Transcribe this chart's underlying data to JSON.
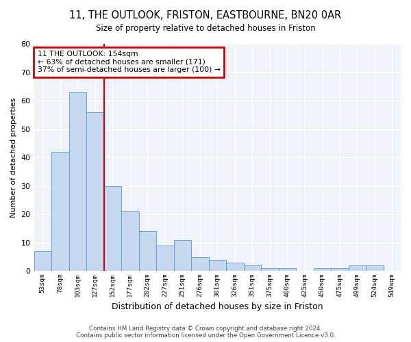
{
  "title1": "11, THE OUTLOOK, FRISTON, EASTBOURNE, BN20 0AR",
  "title2": "Size of property relative to detached houses in Friston",
  "xlabel": "Distribution of detached houses by size in Friston",
  "ylabel": "Number of detached properties",
  "categories": [
    "53sqm",
    "78sqm",
    "103sqm",
    "127sqm",
    "152sqm",
    "177sqm",
    "202sqm",
    "227sqm",
    "251sqm",
    "276sqm",
    "301sqm",
    "326sqm",
    "351sqm",
    "375sqm",
    "400sqm",
    "425sqm",
    "450sqm",
    "475sqm",
    "499sqm",
    "524sqm",
    "549sqm"
  ],
  "values": [
    7,
    42,
    63,
    56,
    30,
    21,
    14,
    9,
    11,
    5,
    4,
    3,
    2,
    1,
    1,
    0,
    1,
    1,
    2,
    2,
    0
  ],
  "bar_color": "#c5d8f0",
  "bar_edge_color": "#5b9bd5",
  "vline_color": "#cc0000",
  "annotation_title": "11 THE OUTLOOK: 154sqm",
  "annotation_line1": "← 63% of detached houses are smaller (171)",
  "annotation_line2": "37% of semi-detached houses are larger (100) →",
  "annotation_box_color": "#ffffff",
  "annotation_box_edge_color": "#cc0000",
  "ylim": [
    0,
    80
  ],
  "yticks": [
    0,
    10,
    20,
    30,
    40,
    50,
    60,
    70,
    80
  ],
  "footer1": "Contains HM Land Registry data © Crown copyright and database right 2024.",
  "footer2": "Contains public sector information licensed under the Open Government Licence v3.0.",
  "bg_color": "#eef2f9"
}
